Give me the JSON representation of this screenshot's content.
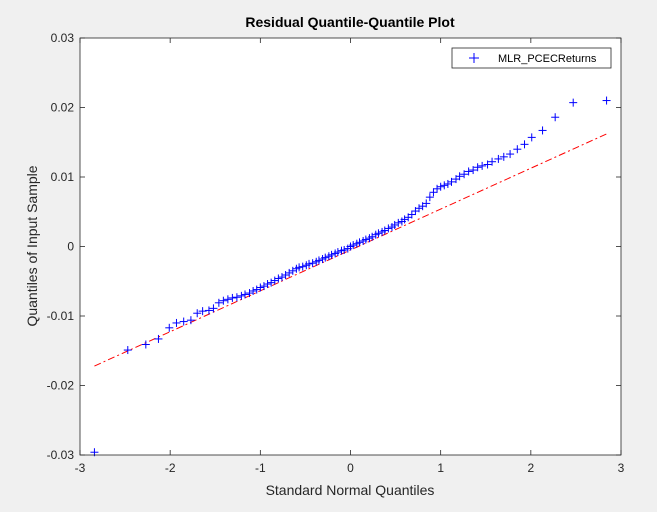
{
  "chart_data": {
    "type": "scatter",
    "title": "Residual Quantile-Quantile Plot",
    "xlabel": "Standard Normal Quantiles",
    "ylabel": "Quantiles of Input Sample",
    "xlim": [
      -3,
      3
    ],
    "ylim": [
      -0.03,
      0.03
    ],
    "xticks": [
      -3,
      -2,
      -1,
      0,
      1,
      2,
      3
    ],
    "xtick_labels": [
      "-3",
      "-2",
      "-1",
      "0",
      "1",
      "2",
      "3"
    ],
    "yticks": [
      -0.03,
      -0.02,
      -0.01,
      0,
      0.01,
      0.02,
      0.03
    ],
    "ytick_labels": [
      "-0.03",
      "-0.02",
      "-0.01",
      "0",
      "0.01",
      "0.02",
      "0.03"
    ],
    "grid": false,
    "legend_position": "top-right",
    "series": [
      {
        "name": "MLR_PCECReturns",
        "marker": "+",
        "color": "#0000ff",
        "x": [
          -2.84,
          -2.47,
          -2.27,
          -2.13,
          -2.01,
          -1.93,
          -1.85,
          -1.77,
          -1.7,
          -1.64,
          -1.57,
          -1.52,
          -1.46,
          -1.41,
          -1.36,
          -1.31,
          -1.26,
          -1.21,
          -1.17,
          -1.12,
          -1.08,
          -1.04,
          -1.0,
          -0.96,
          -0.92,
          -0.88,
          -0.84,
          -0.8,
          -0.76,
          -0.72,
          -0.68,
          -0.64,
          -0.6,
          -0.57,
          -0.53,
          -0.49,
          -0.46,
          -0.42,
          -0.38,
          -0.35,
          -0.31,
          -0.28,
          -0.24,
          -0.21,
          -0.17,
          -0.14,
          -0.1,
          -0.07,
          -0.03,
          0.0,
          0.03,
          0.07,
          0.1,
          0.14,
          0.17,
          0.21,
          0.24,
          0.28,
          0.31,
          0.35,
          0.38,
          0.42,
          0.46,
          0.49,
          0.53,
          0.57,
          0.6,
          0.64,
          0.68,
          0.72,
          0.76,
          0.8,
          0.84,
          0.88,
          0.92,
          0.96,
          1.0,
          1.04,
          1.08,
          1.12,
          1.17,
          1.21,
          1.26,
          1.31,
          1.36,
          1.41,
          1.46,
          1.52,
          1.57,
          1.64,
          1.7,
          1.77,
          1.85,
          1.93,
          2.01,
          2.13,
          2.27,
          2.47,
          2.84
        ],
        "y": [
          -0.0296,
          -0.0149,
          -0.0141,
          -0.0133,
          -0.0117,
          -0.011,
          -0.0108,
          -0.0106,
          -0.0096,
          -0.0093,
          -0.0092,
          -0.0089,
          -0.0081,
          -0.0078,
          -0.0076,
          -0.0074,
          -0.0073,
          -0.0071,
          -0.0069,
          -0.0067,
          -0.0064,
          -0.0062,
          -0.0059,
          -0.0057,
          -0.0054,
          -0.0052,
          -0.0049,
          -0.0046,
          -0.0044,
          -0.0041,
          -0.0038,
          -0.0035,
          -0.0032,
          -0.003,
          -0.0029,
          -0.0027,
          -0.0025,
          -0.0024,
          -0.0022,
          -0.002,
          -0.0018,
          -0.0016,
          -0.0014,
          -0.0012,
          -0.001,
          -0.0008,
          -0.0006,
          -0.0005,
          -0.0003,
          0.0,
          0.0002,
          0.0004,
          0.0006,
          0.0008,
          0.001,
          0.0012,
          0.0014,
          0.0017,
          0.0019,
          0.0021,
          0.0023,
          0.0026,
          0.0028,
          0.0031,
          0.0034,
          0.0036,
          0.0039,
          0.0042,
          0.0046,
          0.0051,
          0.0055,
          0.0058,
          0.0062,
          0.0071,
          0.0078,
          0.0083,
          0.0086,
          0.0088,
          0.009,
          0.0093,
          0.0097,
          0.0101,
          0.0104,
          0.0108,
          0.011,
          0.0114,
          0.0116,
          0.0118,
          0.0122,
          0.0126,
          0.0129,
          0.0133,
          0.014,
          0.0147,
          0.0157,
          0.0167,
          0.0186,
          0.0207,
          0.021
        ]
      },
      {
        "type": "line",
        "style": "dash-dot",
        "color": "#ff0000",
        "x": [
          -2.84,
          2.84
        ],
        "y": [
          -0.0172,
          0.0162
        ]
      }
    ]
  }
}
